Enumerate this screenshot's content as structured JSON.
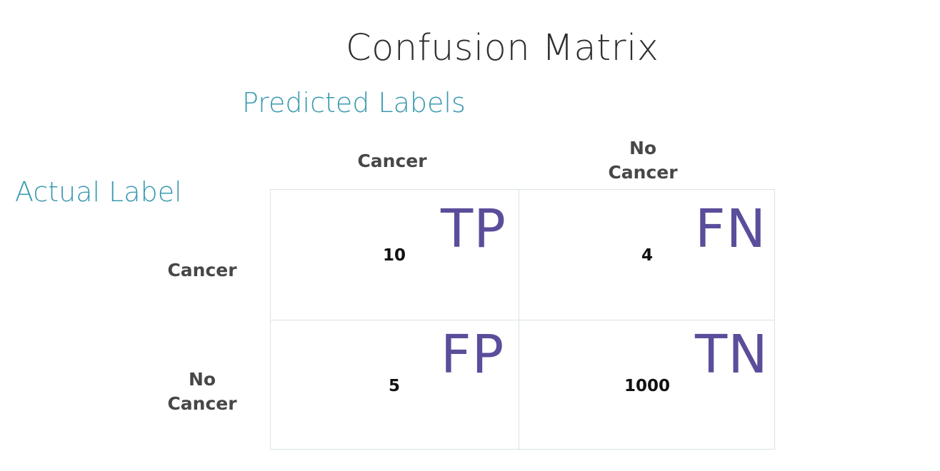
{
  "title": "Confusion Matrix",
  "predicted_label": "Predicted Labels",
  "actual_label": "Actual Label",
  "columns": [
    {
      "lines": [
        "Cancer"
      ]
    },
    {
      "lines": [
        "No",
        "Cancer"
      ]
    }
  ],
  "rows": [
    {
      "lines": [
        "Cancer"
      ]
    },
    {
      "lines": [
        "No",
        "Cancer"
      ]
    }
  ],
  "cells": [
    {
      "abbr": "TP",
      "value": "10"
    },
    {
      "abbr": "FN",
      "value": "4"
    },
    {
      "abbr": "FP",
      "value": "5"
    },
    {
      "abbr": "TN",
      "value": "1000"
    }
  ],
  "colors": {
    "title": "#2f2f2f",
    "teal": "#3a9ab0",
    "abbr": "#5c4d9b",
    "grid": "#d7e3e7"
  }
}
